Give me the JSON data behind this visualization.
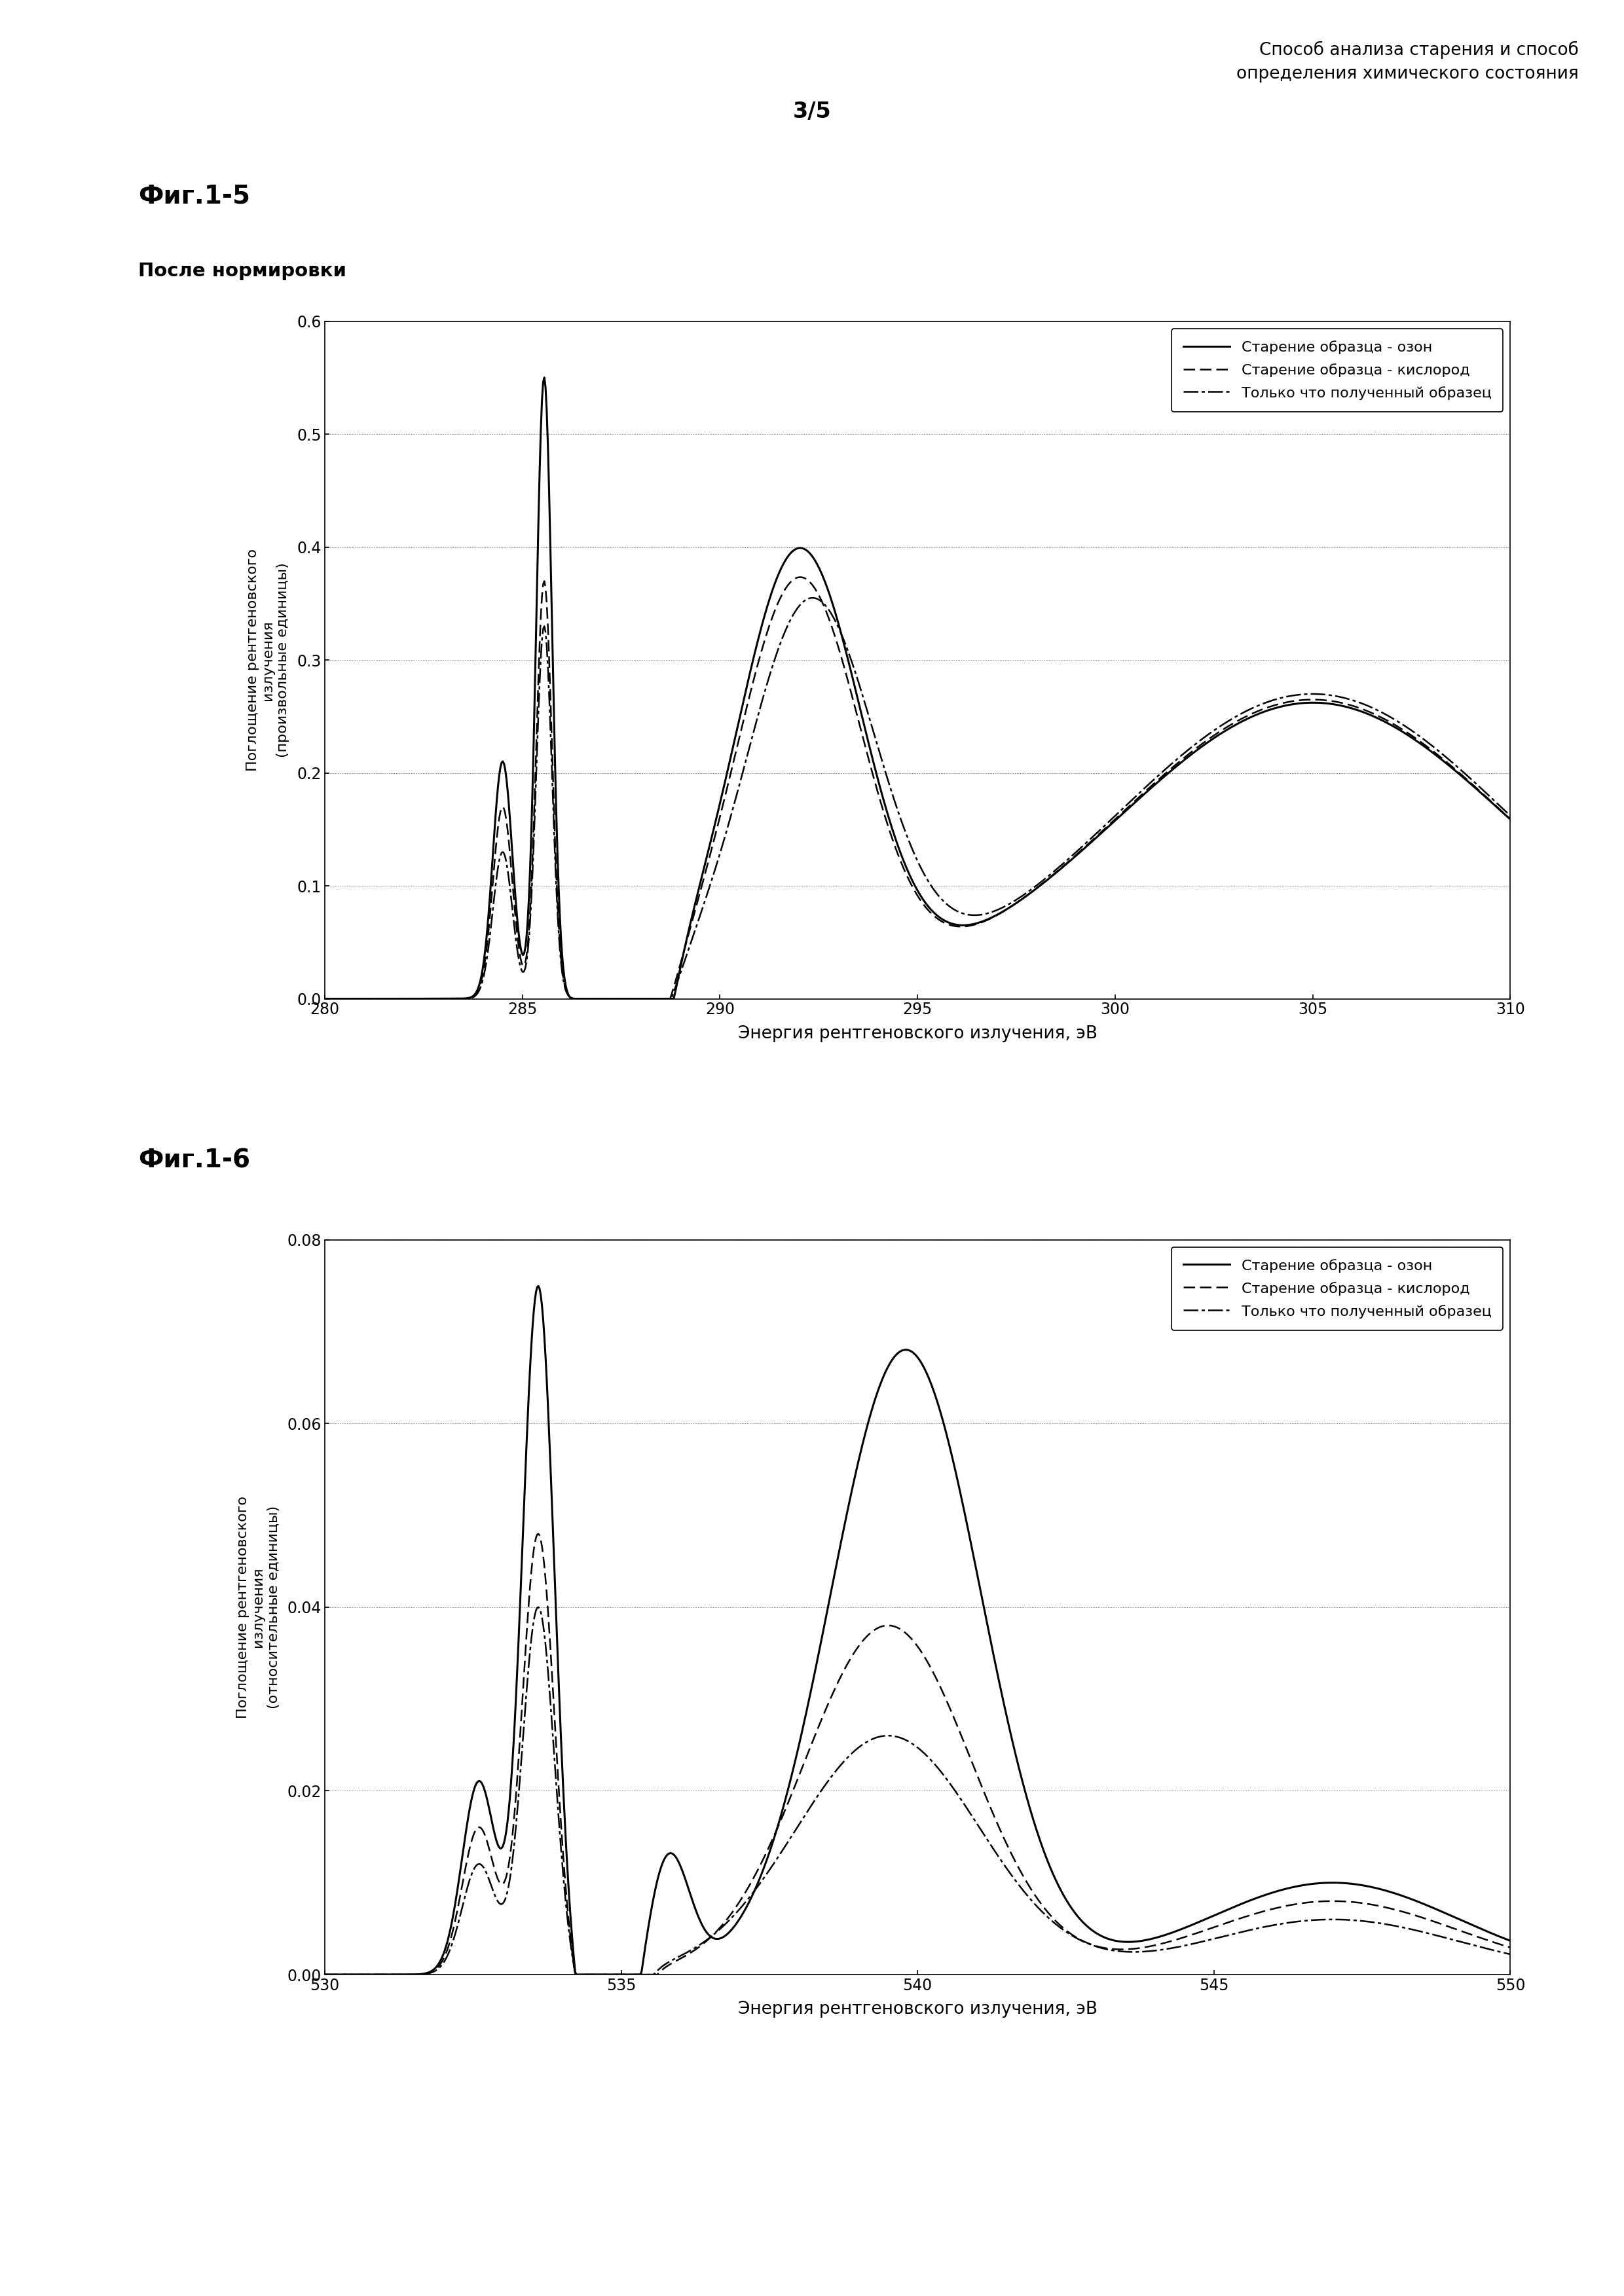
{
  "header_line1": "Способ анализа старения и способ",
  "header_line2": "определения химического состояния",
  "page_number": "3/5",
  "fig1_title": "Фиг.1-5",
  "fig1_subtitle": "После нормировки",
  "fig1_xlabel": "Энергия рентгеновского излучения, эВ",
  "fig1_ylabel": "Поглощение рентгеновского\nизлучения\n(произвольные единицы)",
  "fig1_xlim": [
    280,
    310
  ],
  "fig1_ylim": [
    0,
    0.6
  ],
  "fig1_xticks": [
    280,
    285,
    290,
    295,
    300,
    305,
    310
  ],
  "fig1_yticks": [
    0,
    0.1,
    0.2,
    0.3,
    0.4,
    0.5,
    0.6
  ],
  "fig2_title": "Фиг.1-6",
  "fig2_xlabel": "Энергия рентгеновского излучения, эВ",
  "fig2_ylabel": "Поглощение рентгеновского\nизлучения\n(относительные единицы)",
  "fig2_xlim": [
    530,
    550
  ],
  "fig2_ylim": [
    0,
    0.08
  ],
  "fig2_xticks": [
    530,
    535,
    540,
    545,
    550
  ],
  "fig2_yticks": [
    0,
    0.02,
    0.04,
    0.06,
    0.08
  ],
  "legend_ozone": "Старение образца - озон",
  "legend_oxygen": "Старение образца - кислород",
  "legend_fresh": "Только что полученный образец",
  "background_color": "#ffffff",
  "text_color": "#000000"
}
